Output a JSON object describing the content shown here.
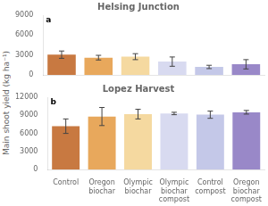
{
  "chart_data": [
    {
      "type": "bar",
      "title": "Helsing Junction",
      "annotation": "a",
      "ylabel": "Main shoot yield (kg ha⁻¹)",
      "categories": [
        "Control",
        "Oregon\nbiochar",
        "Olympic\nbiochar",
        "Olympic\nbiochar\ncompost",
        "Control\ncompost",
        "Oregon\nbiochar\ncompost"
      ],
      "values": [
        3050,
        2600,
        2750,
        2000,
        1200,
        1600
      ],
      "errors": [
        550,
        350,
        450,
        700,
        250,
        700
      ],
      "colors": [
        "#c87941",
        "#e8a85c",
        "#f5d9a0",
        "#d8daf0",
        "#c4c8e8",
        "#9988c8"
      ],
      "ylim": [
        0,
        9000
      ],
      "yticks": [
        0,
        3000,
        6000,
        9000
      ],
      "grid": false,
      "tick_labels": "y"
    },
    {
      "type": "bar",
      "title": "Lopez Harvest",
      "annotation": "b",
      "ylabel": "Main shoot yield (kg ha⁻¹)",
      "categories": [
        "Control",
        "Oregon\nbiochar",
        "Olympic\nbiochar",
        "Olympic\nbiochar\ncompost",
        "Control\ncompost",
        "Oregon\nbiochar\ncompost"
      ],
      "values": [
        7200,
        8800,
        9200,
        9300,
        9100,
        9500
      ],
      "errors": [
        1200,
        1500,
        800,
        200,
        600,
        300
      ],
      "colors": [
        "#c87941",
        "#e8a85c",
        "#f5d9a0",
        "#d8daf0",
        "#c4c8e8",
        "#9988c8"
      ],
      "ylim": [
        0,
        12000
      ],
      "yticks": [
        0,
        3000,
        6000,
        9000,
        12000
      ],
      "grid": false
    }
  ]
}
